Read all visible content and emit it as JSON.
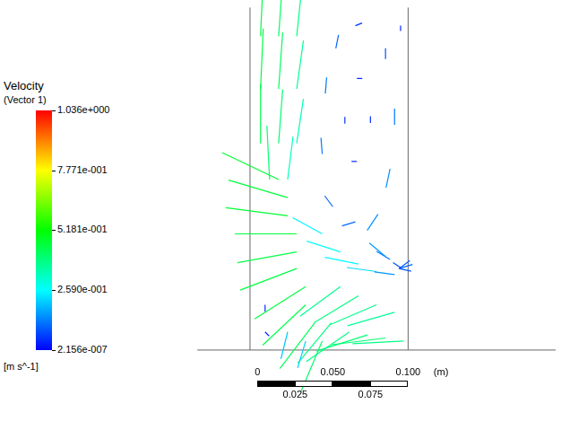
{
  "chart_data": {
    "type": "vector",
    "title": "Velocity",
    "subtitle": "(Vector 1)",
    "tick_labels": false,
    "xlim": [
      -0.052,
      0.198
    ],
    "ylim": [
      -0.053,
      0.232
    ],
    "colorbar": {
      "label": "[m s^-1]",
      "range": [
        2.156e-07,
        1.036
      ],
      "ticks": [
        {
          "value": 1.036,
          "label": "1.036e+000"
        },
        {
          "value": 0.7771,
          "label": "7.771e-001"
        },
        {
          "value": 0.5181,
          "label": "5.181e-001"
        },
        {
          "value": 0.259,
          "label": "2.590e-001"
        },
        {
          "value": 2.156e-07,
          "label": "2.156e-007"
        }
      ]
    },
    "scale_bar": {
      "unit": "(m)",
      "ticks": [
        0,
        0.025,
        {
          "value": 0.05,
          "label": "0.050"
        },
        0.075,
        {
          "value": 0.1,
          "label": "0.100"
        }
      ]
    },
    "walls": [
      {
        "x": [
          -0.005,
          -0.005
        ],
        "y": [
          0,
          0.227
        ]
      },
      {
        "x": [
          0.1,
          0.1
        ],
        "y": [
          0,
          0.227
        ]
      },
      {
        "x": [
          -0.04,
          0.198
        ],
        "y": [
          0,
          0
        ]
      }
    ],
    "vectors": {
      "x": [
        0.002,
        0.014,
        0.026,
        0.002,
        0.014,
        0.026,
        0.002,
        0.014,
        0.026,
        0.008,
        0.02,
        0.014,
        0.02,
        0.02,
        0.026,
        0.026,
        0.026,
        0.032,
        0.032,
        0.038,
        0.043,
        0.043,
        0.055,
        0.067,
        0.079,
        0.091,
        0.055,
        0.067,
        0.079,
        0.091,
        0.049,
        0.061,
        0.073,
        0.085,
        0.097,
        0.02,
        0.032,
        0.005,
        0.005,
        0.085,
        0.091,
        0.088,
        0.08,
        0.065,
        0.05,
        0.043,
        0.045,
        0.052,
        0.065,
        0.075,
        0.058,
        0.066,
        0.066,
        0.095,
        0.094,
        0.094,
        0.094,
        0.09,
        0.088,
        0.085
      ],
      "y": [
        0.208,
        0.208,
        0.208,
        0.173,
        0.173,
        0.173,
        0.137,
        0.137,
        0.137,
        0.113,
        0.113,
        0.113,
        0.101,
        0.089,
        0.077,
        0.065,
        0.054,
        0.042,
        0.03,
        0.018,
        0.006,
        0.077,
        0.065,
        0.057,
        0.052,
        0.05,
        0.042,
        0.036,
        0.03,
        0.025,
        0.018,
        0.012,
        0.01,
        0.008,
        0.006,
        0.012,
        0.006,
        0.03,
        0.012,
        0.2,
        0.16,
        0.12,
        0.09,
        0.085,
        0.095,
        0.13,
        0.17,
        0.2,
        0.215,
        0.155,
        0.15,
        0.125,
        0.18,
        0.215,
        0.054,
        0.054,
        0.054,
        0.058,
        0.06,
        0.062
      ],
      "u": [
        0.02,
        0.03,
        0.04,
        0.02,
        0.03,
        0.05,
        0.0,
        0.03,
        0.05,
        -0.02,
        0.04,
        -0.42,
        -0.44,
        -0.46,
        -0.46,
        -0.44,
        -0.42,
        -0.38,
        -0.32,
        -0.26,
        -0.16,
        -0.22,
        -0.25,
        -0.25,
        -0.22,
        -0.15,
        -0.3,
        -0.33,
        -0.35,
        -0.35,
        -0.25,
        -0.32,
        -0.38,
        -0.4,
        -0.38,
        -0.05,
        -0.06,
        0.0,
        0.03,
        0.0,
        0.0,
        -0.03,
        -0.08,
        -0.1,
        -0.06,
        -0.01,
        0.01,
        0.02,
        0.05,
        0.0,
        0.0,
        -0.04,
        0.04,
        0.0,
        0.1,
        0.09,
        0.08,
        0.06,
        -0.1,
        -0.12
      ],
      "v": [
        0.45,
        0.42,
        0.38,
        0.45,
        0.42,
        0.36,
        0.44,
        0.4,
        0.33,
        0.4,
        0.32,
        0.2,
        0.13,
        0.06,
        0.0,
        -0.08,
        -0.16,
        -0.24,
        -0.3,
        -0.34,
        -0.38,
        0.12,
        0.08,
        0.05,
        0.03,
        0.02,
        -0.22,
        -0.2,
        -0.15,
        -0.1,
        -0.3,
        -0.22,
        -0.12,
        -0.05,
        -0.02,
        -0.2,
        -0.2,
        -0.05,
        -0.03,
        -0.08,
        -0.12,
        -0.14,
        -0.12,
        -0.03,
        0.08,
        0.12,
        0.12,
        0.1,
        0.02,
        -0.05,
        0.05,
        0.0,
        0.0,
        -0.04,
        0.03,
        -0.02,
        0.06,
        -0.04,
        0.06,
        0.1
      ]
    }
  }
}
